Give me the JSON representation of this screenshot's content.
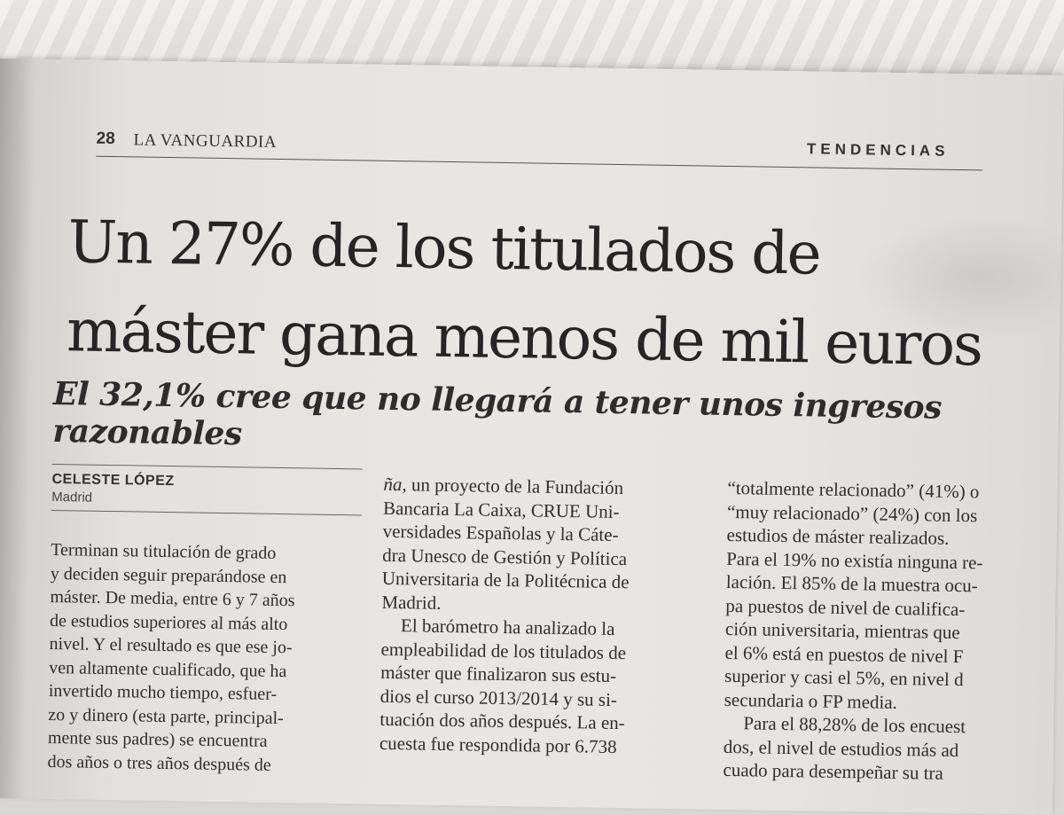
{
  "header": {
    "page_number": "28",
    "publication": "LA VANGUARDIA",
    "section": "TENDENCIAS"
  },
  "article": {
    "headline_line1": "Un 27% de los titulados de",
    "headline_line2": "máster gana menos de mil euros",
    "subheadline": "El 32,1% cree que no llegará a tener unos ingresos razonables",
    "author": "CELESTE LÓPEZ",
    "location": "Madrid",
    "col1_lines": [
      "Terminan su titulación de grado",
      "y deciden seguir preparándose en",
      "máster. De media, entre 6 y 7 años",
      "de estudios superiores al más alto",
      "nivel. Y el resultado es que ese jo-",
      "ven altamente cualificado, que ha",
      "invertido mucho tiempo, esfuer-",
      "zo y dinero (esta parte, principal-",
      "mente sus padres) se encuentra",
      "dos años o tres años después de"
    ],
    "col2_first": "ña,",
    "col2_lines": [
      " un proyecto de la Fundación",
      "Bancaria La Caixa, CRUE Uni-",
      "versidades Españolas y la Cáte-",
      "dra Unesco de Gestión y Política",
      "Universitaria de la Politécnica de",
      "Madrid."
    ],
    "col2_para2": [
      "El barómetro ha analizado la",
      "empleabilidad de los titulados de",
      "máster que finalizaron sus estu-",
      "dios el curso 2013/2014 y su si-",
      "tuación dos años después. La en-",
      "cuesta fue respondida por 6.738"
    ],
    "col3_lines": [
      "“totalmente relacionado” (41%) o",
      "“muy relacionado” (24%) con los",
      "estudios de máster realizados.",
      "Para el 19% no existía ninguna re-",
      "lación. El 85% de la muestra ocu-",
      "pa puestos de nivel de cualifica-",
      "ción universitaria, mientras que",
      "el 6% está en puestos de nivel F",
      "superior y casi el 5%, en nivel d",
      "secundaria o FP media."
    ],
    "col3_para2": [
      "Para el 88,28% de los encuest",
      "dos, el nivel de estudios más ad",
      "cuado para desempeñar su tra"
    ]
  }
}
